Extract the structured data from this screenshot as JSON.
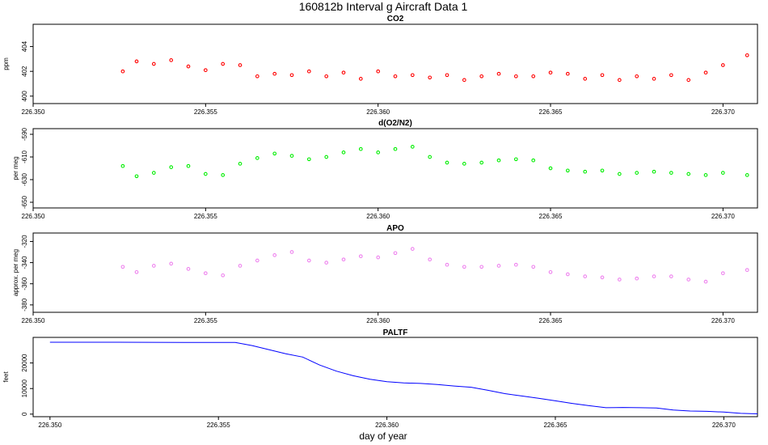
{
  "figure": {
    "title": "160812b   Interval g Aircraft Data 1",
    "xlabel": "day of year"
  },
  "chart_data": [
    {
      "type": "scatter",
      "title": "CO2",
      "xlabel": "",
      "ylabel": "ppm",
      "xlim": [
        226.35,
        226.371
      ],
      "ylim": [
        399.4,
        405.8
      ],
      "x_ticks": [
        "226.350",
        "226.355",
        "226.360",
        "226.365",
        "226.370"
      ],
      "y_ticks": [
        "400",
        "402",
        "404"
      ],
      "color": "#ff0000",
      "series": [
        {
          "x": [
            226.3526,
            226.353,
            226.3535,
            226.354,
            226.3545,
            226.355,
            226.3555,
            226.356,
            226.3565,
            226.357,
            226.3575,
            226.358,
            226.3585,
            226.359,
            226.3595,
            226.36,
            226.3605,
            226.361,
            226.3615,
            226.362,
            226.3625,
            226.363,
            226.3635,
            226.364,
            226.3645,
            226.365,
            226.3655,
            226.366,
            226.3665,
            226.367,
            226.3675,
            226.368,
            226.3685,
            226.369,
            226.3695,
            226.37,
            226.3707
          ],
          "y": [
            402.0,
            402.8,
            402.6,
            402.9,
            402.4,
            402.1,
            402.6,
            402.5,
            401.6,
            401.8,
            401.7,
            402.0,
            401.6,
            401.9,
            401.4,
            402.0,
            401.6,
            401.7,
            401.5,
            401.7,
            401.3,
            401.6,
            401.8,
            401.6,
            401.6,
            401.9,
            401.8,
            401.4,
            401.7,
            401.3,
            401.6,
            401.4,
            401.7,
            401.3,
            401.9,
            402.5,
            403.3
          ]
        }
      ]
    },
    {
      "type": "scatter",
      "title": "d(O2/N2)",
      "xlabel": "",
      "ylabel": "per meg",
      "xlim": [
        226.35,
        226.371
      ],
      "ylim": [
        -655,
        -585
      ],
      "x_ticks": [
        "226.350",
        "226.355",
        "226.360",
        "226.365",
        "226.370"
      ],
      "y_ticks": [
        "-590",
        "-610",
        "-630",
        "-650"
      ],
      "color": "#00ee00",
      "series": [
        {
          "x": [
            226.3526,
            226.353,
            226.3535,
            226.354,
            226.3545,
            226.355,
            226.3555,
            226.356,
            226.3565,
            226.357,
            226.3575,
            226.358,
            226.3585,
            226.359,
            226.3595,
            226.36,
            226.3605,
            226.361,
            226.3615,
            226.362,
            226.3625,
            226.363,
            226.3635,
            226.364,
            226.3645,
            226.365,
            226.3655,
            226.366,
            226.3665,
            226.367,
            226.3675,
            226.368,
            226.3685,
            226.369,
            226.3695,
            226.37,
            226.3707
          ],
          "y": [
            -618,
            -627,
            -624,
            -619,
            -618,
            -625,
            -626,
            -616,
            -611,
            -607,
            -609,
            -612,
            -610,
            -606,
            -603,
            -606,
            -603,
            -601,
            -610,
            -615,
            -616,
            -615,
            -613,
            -612,
            -613,
            -620,
            -622,
            -623,
            -622,
            -625,
            -624,
            -623,
            -624,
            -625,
            -626,
            -624,
            -626
          ]
        }
      ]
    },
    {
      "type": "scatter",
      "title": "APO",
      "xlabel": "",
      "ylabel": "approx. per meg",
      "xlim": [
        226.35,
        226.371
      ],
      "ylim": [
        -387,
        -312
      ],
      "x_ticks": [
        "226.350",
        "226.355",
        "226.360",
        "226.365",
        "226.370"
      ],
      "y_ticks": [
        "-320",
        "-340",
        "-360",
        "-380"
      ],
      "color": "#ee82ee",
      "series": [
        {
          "x": [
            226.3526,
            226.353,
            226.3535,
            226.354,
            226.3545,
            226.355,
            226.3555,
            226.356,
            226.3565,
            226.357,
            226.3575,
            226.358,
            226.3585,
            226.359,
            226.3595,
            226.36,
            226.3605,
            226.361,
            226.3615,
            226.362,
            226.3625,
            226.363,
            226.3635,
            226.364,
            226.3645,
            226.365,
            226.3655,
            226.366,
            226.3665,
            226.367,
            226.3675,
            226.368,
            226.3685,
            226.369,
            226.3695,
            226.37,
            226.3707
          ],
          "y": [
            -344,
            -349,
            -343,
            -341,
            -346,
            -350,
            -352,
            -343,
            -338,
            -333,
            -330,
            -338,
            -340,
            -337,
            -334,
            -335,
            -331,
            -327,
            -337,
            -342,
            -344,
            -344,
            -343,
            -342,
            -344,
            -349,
            -351,
            -353,
            -354,
            -356,
            -355,
            -353,
            -353,
            -356,
            -358,
            -350,
            -347
          ]
        }
      ]
    },
    {
      "type": "line",
      "title": "PALTF",
      "xlabel": "day of year",
      "ylabel": "feet",
      "xlim": [
        226.3495,
        226.371
      ],
      "ylim": [
        -1000,
        30000
      ],
      "x_ticks": [
        "226.350",
        "226.355",
        "226.360",
        "226.365",
        "226.370"
      ],
      "y_ticks": [
        "0",
        "10000",
        "20000"
      ],
      "color": "#0000ff",
      "series": [
        {
          "x": [
            226.35,
            226.352,
            226.354,
            226.3555,
            226.356,
            226.357,
            226.3575,
            226.358,
            226.3585,
            226.359,
            226.3595,
            226.36,
            226.3605,
            226.361,
            226.3615,
            226.362,
            226.3625,
            226.363,
            226.3635,
            226.364,
            226.3645,
            226.365,
            226.3655,
            226.366,
            226.3665,
            226.367,
            226.3675,
            226.368,
            226.3685,
            226.369,
            226.3695,
            226.37,
            226.3705,
            226.371
          ],
          "y": [
            28100,
            28100,
            28000,
            28000,
            26800,
            23600,
            22300,
            19200,
            16800,
            15000,
            13600,
            12700,
            12200,
            12000,
            11600,
            11000,
            10500,
            9300,
            8000,
            7100,
            6200,
            5200,
            4200,
            3300,
            2500,
            2600,
            2500,
            2400,
            1600,
            1200,
            1100,
            800,
            300,
            100
          ]
        }
      ]
    }
  ]
}
